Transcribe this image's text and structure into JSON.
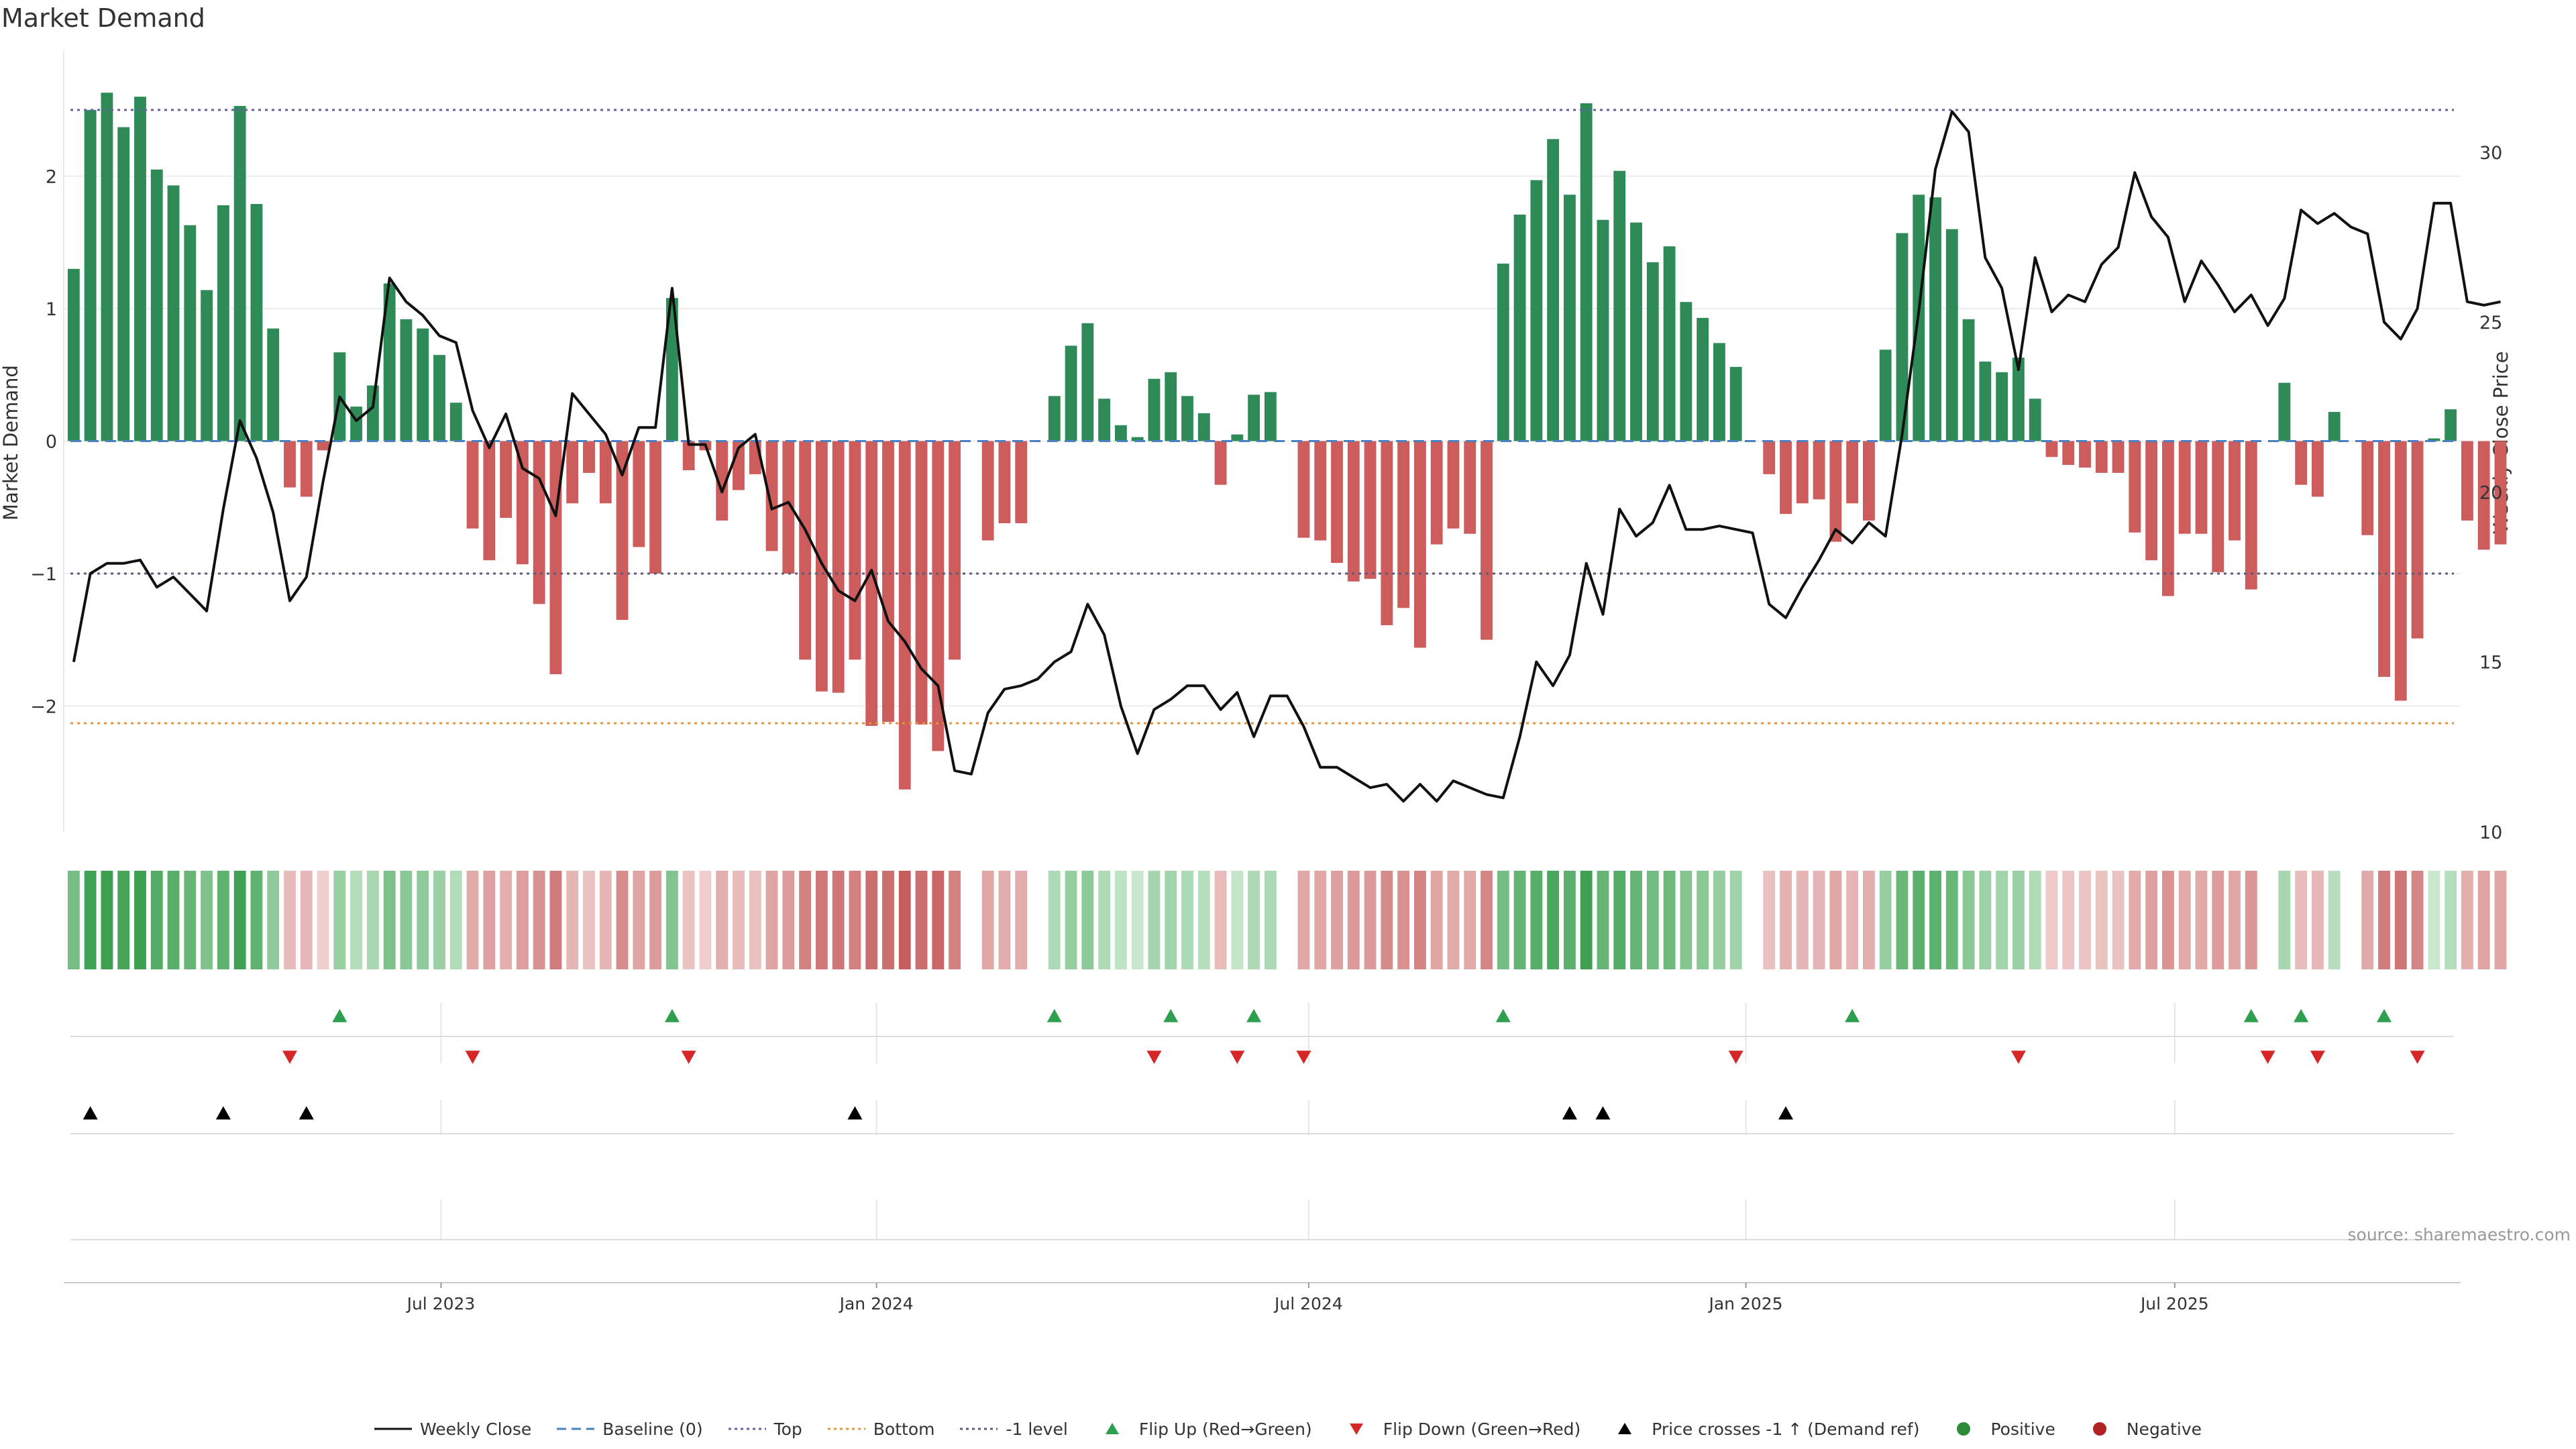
{
  "chart_data": {
    "type": "bar",
    "title": "Market Demand",
    "ylabel": "Market Demand",
    "y2label": "Weekly Close Price",
    "ylim": [
      -2.95,
      2.95
    ],
    "y2lim": [
      10,
      33
    ],
    "yticks": [
      -2,
      -1,
      0,
      1,
      2
    ],
    "ytick_labels": [
      "−2",
      "−1",
      "0",
      "1",
      "2"
    ],
    "y2ticks": [
      10,
      15,
      20,
      25,
      30
    ],
    "y2tick_labels": [
      "10",
      "15",
      "20",
      "25",
      "30"
    ],
    "x_start": "2023-01-06",
    "x_step_days": 7,
    "xlim": [
      -0.6,
      143.6
    ],
    "xticks": [
      {
        "label": "Jul 2023",
        "index": 22.1
      },
      {
        "label": "Jan 2024",
        "index": 48.3
      },
      {
        "label": "Jul 2024",
        "index": 74.3
      },
      {
        "label": "Jan 2025",
        "index": 100.6
      },
      {
        "label": "Jul 2025",
        "index": 126.4
      }
    ],
    "reference_lines": {
      "top": 2.5,
      "bottom": -2.13,
      "minus_one": -1,
      "baseline": 0
    },
    "demand": [
      1.3,
      2.5,
      2.63,
      2.37,
      2.6,
      2.05,
      1.93,
      1.63,
      1.14,
      1.78,
      2.53,
      1.79,
      0.85,
      -0.35,
      -0.42,
      -0.07,
      0.67,
      0.26,
      0.42,
      1.19,
      0.92,
      0.85,
      0.65,
      0.29,
      -0.66,
      -0.9,
      -0.58,
      -0.93,
      -1.23,
      -1.76,
      -0.47,
      -0.24,
      -0.47,
      -1.35,
      -0.8,
      -1.0,
      1.08,
      -0.22,
      -0.07,
      -0.6,
      -0.37,
      -0.25,
      -0.83,
      -1.0,
      -1.65,
      -1.89,
      -1.9,
      -1.65,
      -2.15,
      -2.12,
      -2.63,
      -2.14,
      -2.34,
      -1.65,
      0.0,
      -0.75,
      -0.62,
      -0.62,
      0.0,
      0.34,
      0.72,
      0.89,
      0.32,
      0.12,
      0.03,
      0.47,
      0.52,
      0.34,
      0.21,
      -0.33,
      0.05,
      0.35,
      0.37,
      0.0,
      -0.73,
      -0.75,
      -0.92,
      -1.06,
      -1.04,
      -1.39,
      -1.26,
      -1.56,
      -0.78,
      -0.66,
      -0.7,
      -1.5,
      1.34,
      1.71,
      1.97,
      2.28,
      1.86,
      2.55,
      1.67,
      2.04,
      1.65,
      1.35,
      1.47,
      1.05,
      0.93,
      0.74,
      0.56,
      0.0,
      -0.25,
      -0.55,
      -0.47,
      -0.44,
      -0.76,
      -0.47,
      -0.6,
      0.69,
      1.57,
      1.86,
      1.84,
      1.6,
      0.92,
      0.6,
      0.52,
      0.63,
      0.32,
      -0.12,
      -0.18,
      -0.2,
      -0.24,
      -0.24,
      -0.69,
      -0.9,
      -1.17,
      -0.7,
      -0.7,
      -0.99,
      -0.75,
      -1.12,
      0.0,
      0.44,
      -0.33,
      -0.42,
      0.22,
      0.0,
      -0.71,
      -1.78,
      -1.96,
      -1.49,
      0.02,
      0.24,
      -0.6,
      -0.82,
      -0.78
    ],
    "price": [
      15.0,
      17.6,
      17.9,
      17.9,
      18.0,
      17.2,
      17.5,
      17.0,
      16.5,
      19.5,
      22.1,
      21.0,
      19.4,
      16.8,
      17.5,
      20.3,
      22.8,
      22.1,
      22.5,
      26.3,
      25.6,
      25.2,
      24.6,
      24.4,
      22.4,
      21.3,
      22.3,
      20.7,
      20.4,
      19.3,
      22.9,
      22.3,
      21.7,
      20.5,
      21.9,
      21.9,
      26.0,
      21.4,
      21.4,
      20.0,
      21.3,
      21.7,
      19.5,
      19.7,
      18.9,
      17.9,
      17.1,
      16.8,
      17.7,
      16.2,
      15.6,
      14.8,
      14.3,
      11.8,
      11.7,
      13.5,
      14.2,
      14.3,
      14.5,
      15.0,
      15.3,
      16.7,
      15.8,
      13.7,
      12.3,
      13.6,
      13.9,
      14.3,
      14.3,
      13.6,
      14.1,
      12.8,
      14.0,
      14.0,
      13.1,
      11.9,
      11.9,
      11.6,
      11.3,
      11.4,
      10.9,
      11.4,
      10.9,
      11.5,
      11.3,
      11.1,
      11.0,
      12.8,
      15.0,
      14.3,
      15.2,
      17.9,
      16.4,
      19.5,
      18.7,
      19.1,
      20.2,
      18.9,
      18.9,
      19.0,
      18.9,
      18.8,
      16.7,
      16.3,
      17.2,
      18.0,
      18.9,
      18.5,
      19.1,
      18.7,
      21.7,
      25.3,
      29.5,
      31.2,
      30.6,
      26.9,
      26.0,
      23.6,
      26.9,
      25.3,
      25.8,
      25.6,
      26.7,
      27.2,
      29.4,
      28.1,
      27.5,
      25.6,
      26.8,
      26.1,
      25.3,
      25.8,
      24.9,
      25.7,
      28.3,
      27.9,
      28.2,
      27.8,
      27.6,
      25.0,
      24.5,
      25.4,
      28.5,
      28.5,
      25.6,
      25.5,
      25.6
    ],
    "flip_up": [
      16,
      36,
      59,
      66,
      71,
      86,
      107,
      131,
      134,
      139
    ],
    "flip_down": [
      13,
      24,
      37,
      65,
      70,
      74,
      100,
      117,
      132,
      135,
      141
    ],
    "price_cross_up": [
      1,
      9,
      14,
      47,
      90,
      92,
      103
    ],
    "source": "source: sharemaestro.com",
    "legend": [
      {
        "label": "Weekly Close",
        "kind": "line-solid",
        "color": "#111111"
      },
      {
        "label": "Baseline (0)",
        "kind": "line-dashed",
        "color": "#4a7fc1"
      },
      {
        "label": "Top",
        "kind": "line-dotted",
        "color": "#6a5fa0"
      },
      {
        "label": "Bottom",
        "kind": "line-dotted",
        "color": "#e8923a"
      },
      {
        "label": "-1 level",
        "kind": "line-dotted",
        "color": "#5a5a7a"
      },
      {
        "label": "Flip Up (Red→Green)",
        "kind": "tri-up",
        "color": "#2e9e4f"
      },
      {
        "label": "Flip Down (Green→Red)",
        "kind": "tri-down",
        "color": "#d62728"
      },
      {
        "label": "Price crosses -1 ↑ (Demand ref)",
        "kind": "tri-up",
        "color": "#000000"
      },
      {
        "label": "Positive",
        "kind": "dot",
        "color": "#2e8b3a"
      },
      {
        "label": "Negative",
        "kind": "dot",
        "color": "#b22222"
      }
    ],
    "colors": {
      "positive_bar": "#2e8b57",
      "negative_bar": "#cd5c5c",
      "price_line": "#111111",
      "baseline": "#4a7fc1",
      "top": "#6a5fa0",
      "bottom": "#e8923a",
      "minus_one": "#5a5a7a"
    }
  }
}
